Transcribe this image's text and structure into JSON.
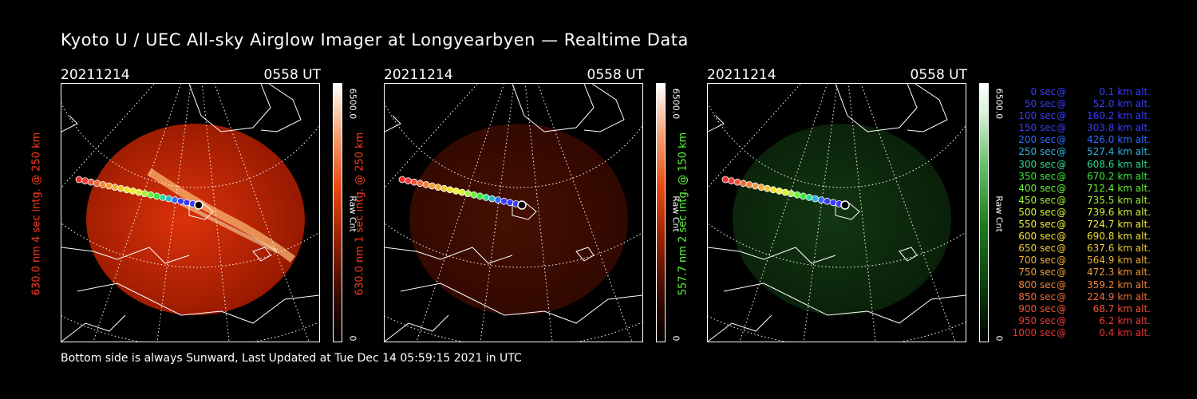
{
  "title": "Kyoto U / UEC All-sky Airglow Imager at Longyearbyen — Realtime Data",
  "footer": "Bottom side is always Sunward, Last Updated at Tue Dec 14 05:59:15 2021 in UTC",
  "colors": {
    "red_label": "#ff3a1e",
    "green_label": "#5cff3a"
  },
  "panels": [
    {
      "date": "20211214",
      "time": "0558 UT",
      "ylabel": "630.0 nm 4 sec intg. @ 250 km",
      "label_color": "#ff3a1e",
      "cbar_max": "6500.0",
      "cbar_min": "0",
      "cbar_unit": "Raw Cnt",
      "colormap": "red",
      "intensity": 1.0
    },
    {
      "date": "20211214",
      "time": "0558 UT",
      "ylabel": "630.0 nm 1 sec intg. @ 250 km",
      "label_color": "#ff3a1e",
      "cbar_max": "6500.0",
      "cbar_min": "0",
      "cbar_unit": "Raw Cnt",
      "colormap": "red",
      "intensity": 0.32
    },
    {
      "date": "20211214",
      "time": "0558 UT",
      "ylabel": "557.7 nm 2 sec intg. @ 150 km",
      "label_color": "#5cff3a",
      "cbar_max": "6500.0",
      "cbar_min": "0",
      "cbar_unit": "Raw Cnt",
      "colormap": "green",
      "intensity": 0.45
    }
  ],
  "legend": [
    {
      "time": "0 sec",
      "alt": "0.1",
      "color": "#3a3aff"
    },
    {
      "time": "50 sec",
      "alt": "52.0",
      "color": "#3a3aff"
    },
    {
      "time": "100 sec",
      "alt": "160.2",
      "color": "#3a3aff"
    },
    {
      "time": "150 sec",
      "alt": "303.8",
      "color": "#3a3aff"
    },
    {
      "time": "200 sec",
      "alt": "426.0",
      "color": "#2f6cff"
    },
    {
      "time": "250 sec",
      "alt": "527.4",
      "color": "#2fb4d8"
    },
    {
      "time": "300 sec",
      "alt": "608.6",
      "color": "#2fd890"
    },
    {
      "time": "350 sec",
      "alt": "670.2",
      "color": "#3ae83a"
    },
    {
      "time": "400 sec",
      "alt": "712.4",
      "color": "#6af03a"
    },
    {
      "time": "450 sec",
      "alt": "735.5",
      "color": "#a8f03a"
    },
    {
      "time": "500 sec",
      "alt": "739.6",
      "color": "#d8f03a"
    },
    {
      "time": "550 sec",
      "alt": "724.7",
      "color": "#f0f03a"
    },
    {
      "time": "600 sec",
      "alt": "690.8",
      "color": "#f0e03a"
    },
    {
      "time": "650 sec",
      "alt": "637.6",
      "color": "#f0c83a"
    },
    {
      "time": "700 sec",
      "alt": "564.9",
      "color": "#f0b03a"
    },
    {
      "time": "750 sec",
      "alt": "472.3",
      "color": "#f09c3a"
    },
    {
      "time": "800 sec",
      "alt": "359.2",
      "color": "#f0843a"
    },
    {
      "time": "850 sec",
      "alt": "224.9",
      "color": "#f06c3a"
    },
    {
      "time": "900 sec",
      "alt": "68.7",
      "color": "#f0543a"
    },
    {
      "time": "950 sec",
      "alt": "6.2",
      "color": "#f03c3a"
    },
    {
      "time": "1000 sec",
      "alt": "0.4",
      "color": "#f0302a"
    }
  ],
  "legend_at": "@",
  "legend_unit": "km alt."
}
